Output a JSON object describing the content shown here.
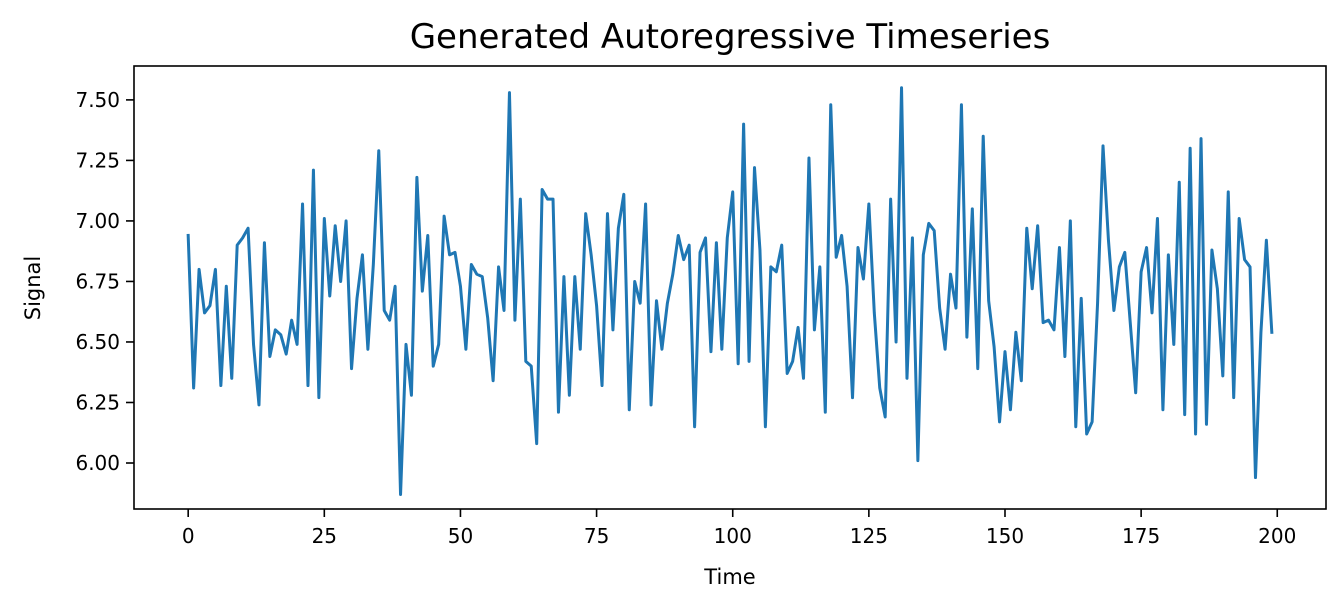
{
  "chart_data": {
    "type": "line",
    "title": "Generated Autoregressive Timeseries",
    "xlabel": "Time",
    "ylabel": "Signal",
    "xlim": [
      -9.95,
      208.95
    ],
    "ylim": [
      5.81,
      7.64
    ],
    "xticks": [
      0,
      25,
      50,
      75,
      100,
      125,
      150,
      175,
      200
    ],
    "yticks": [
      6.0,
      6.25,
      6.5,
      6.75,
      7.0,
      7.25,
      7.5
    ],
    "ytick_labels": [
      "6.00",
      "6.25",
      "6.50",
      "6.75",
      "7.00",
      "7.25",
      "7.50"
    ],
    "grid": false,
    "legend": "none",
    "series": [
      {
        "color": "#1f77b4",
        "x_start": 0,
        "x_step": 1,
        "values": [
          6.94,
          6.31,
          6.8,
          6.62,
          6.65,
          6.8,
          6.32,
          6.73,
          6.35,
          6.9,
          6.93,
          6.97,
          6.49,
          6.24,
          6.91,
          6.44,
          6.55,
          6.53,
          6.45,
          6.59,
          6.49,
          7.07,
          6.32,
          7.21,
          6.27,
          7.01,
          6.69,
          6.98,
          6.75,
          7.0,
          6.39,
          6.68,
          6.86,
          6.47,
          6.82,
          7.29,
          6.63,
          6.59,
          6.73,
          5.87,
          6.49,
          6.28,
          7.18,
          6.71,
          6.94,
          6.4,
          6.49,
          7.02,
          6.86,
          6.87,
          6.73,
          6.47,
          6.82,
          6.78,
          6.77,
          6.6,
          6.34,
          6.81,
          6.63,
          7.53,
          6.59,
          7.09,
          6.42,
          6.4,
          6.08,
          7.13,
          7.09,
          7.09,
          6.21,
          6.77,
          6.28,
          6.77,
          6.47,
          7.03,
          6.86,
          6.65,
          6.32,
          7.03,
          6.55,
          6.97,
          7.11,
          6.22,
          6.75,
          6.66,
          7.07,
          6.24,
          6.67,
          6.47,
          6.66,
          6.78,
          6.94,
          6.84,
          6.9,
          6.15,
          6.87,
          6.93,
          6.46,
          6.91,
          6.47,
          6.93,
          7.12,
          6.41,
          7.4,
          6.42,
          7.22,
          6.88,
          6.15,
          6.81,
          6.79,
          6.9,
          6.37,
          6.42,
          6.56,
          6.35,
          7.26,
          6.55,
          6.81,
          6.21,
          7.48,
          6.85,
          6.94,
          6.73,
          6.27,
          6.89,
          6.76,
          7.07,
          6.62,
          6.31,
          6.19,
          7.09,
          6.5,
          7.55,
          6.35,
          6.93,
          6.01,
          6.86,
          6.99,
          6.96,
          6.64,
          6.47,
          6.78,
          6.64,
          7.48,
          6.52,
          7.05,
          6.39,
          7.35,
          6.67,
          6.48,
          6.17,
          6.46,
          6.22,
          6.54,
          6.34,
          6.97,
          6.72,
          6.98,
          6.58,
          6.59,
          6.55,
          6.89,
          6.44,
          7.0,
          6.15,
          6.68,
          6.12,
          6.17,
          6.66,
          7.31,
          6.92,
          6.63,
          6.81,
          6.87,
          6.58,
          6.29,
          6.79,
          6.89,
          6.62,
          7.01,
          6.22,
          6.86,
          6.49,
          7.16,
          6.2,
          7.3,
          6.12,
          7.34,
          6.16,
          6.88,
          6.72,
          6.36,
          7.12,
          6.27,
          7.01,
          6.84,
          6.81,
          5.94,
          6.54,
          6.92,
          6.54
        ]
      }
    ]
  }
}
